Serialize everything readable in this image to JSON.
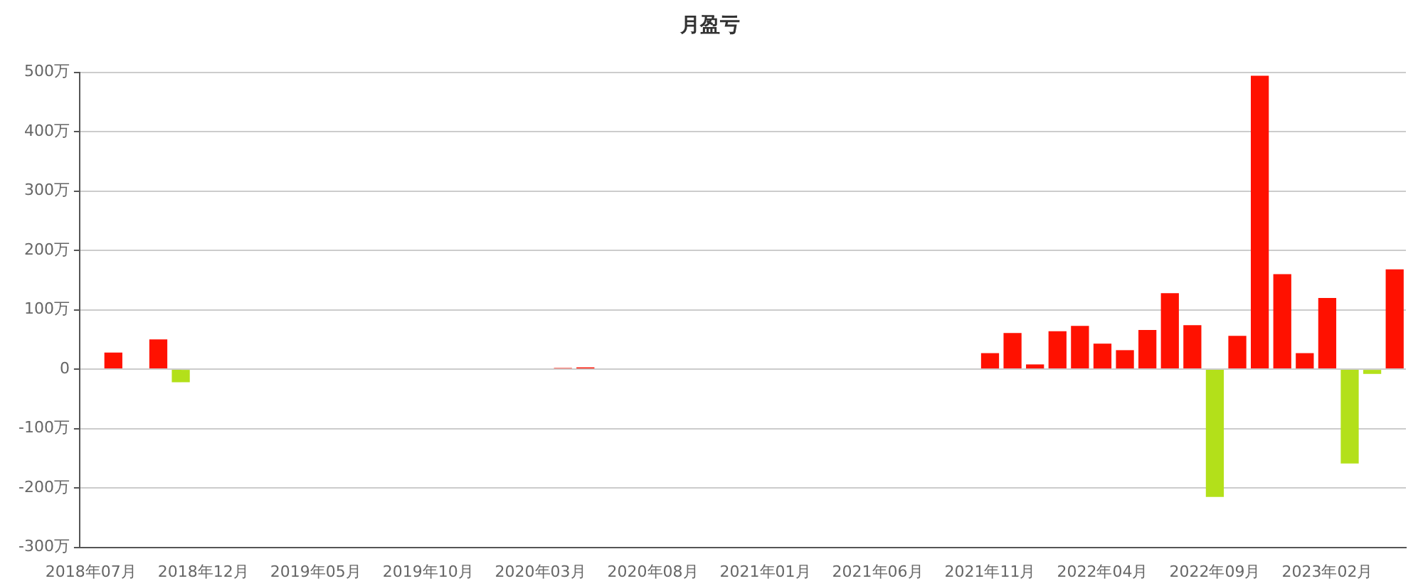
{
  "chart_data": {
    "type": "bar",
    "title": "月盈亏",
    "categories": [
      "2018年07月",
      null,
      null,
      null,
      null,
      "2018年12月",
      null,
      null,
      null,
      null,
      "2019年05月",
      null,
      null,
      null,
      null,
      "2019年10月",
      null,
      null,
      null,
      null,
      "2020年03月",
      null,
      null,
      null,
      null,
      "2020年08月",
      null,
      null,
      null,
      null,
      "2021年01月",
      null,
      null,
      null,
      null,
      "2021年06月",
      null,
      null,
      null,
      null,
      "2021年11月",
      null,
      null,
      null,
      null,
      "2022年04月",
      null,
      null,
      null,
      null,
      "2022年09月",
      null,
      null,
      null,
      null,
      "2023年02月",
      null,
      null,
      null
    ],
    "values": [
      0,
      28,
      null,
      50,
      -22,
      0,
      0,
      0,
      0,
      0,
      0,
      0,
      0,
      0,
      0,
      0,
      0,
      0,
      0,
      0,
      0,
      2,
      3,
      0,
      0,
      0,
      0,
      0,
      0,
      0,
      0,
      0,
      0,
      0,
      0,
      0,
      0,
      0,
      0,
      null,
      27,
      61,
      8,
      64,
      73,
      43,
      32,
      66,
      128,
      74,
      -215,
      56,
      494,
      160,
      27,
      120,
      -159,
      -8,
      168
    ],
    "colors": [
      "#ff1100",
      "#ff1100",
      "#b3e01a",
      "#ff1100",
      "#b3e01a",
      "#ff1100",
      "#ff1100",
      "#ff1100",
      "#ff1100",
      "#ff1100",
      "#ff1100",
      "#ff1100",
      "#ff1100",
      "#ff1100",
      "#ff1100",
      "#ff1100",
      "#ff1100",
      "#ff1100",
      "#ff1100",
      "#ff1100",
      "#ff1100",
      "#ff1100",
      "#ff1100",
      "#ff1100",
      "#ff1100",
      "#ff1100",
      "#ff1100",
      "#ff1100",
      "#ff1100",
      "#ff1100",
      "#ff1100",
      "#ff1100",
      "#ff1100",
      "#ff1100",
      "#ff1100",
      "#ff1100",
      "#ff1100",
      "#ff1100",
      "#ff1100",
      "#ff1100",
      "#ff1100",
      "#ff1100",
      "#ff1100",
      "#ff1100",
      "#ff1100",
      "#ff1100",
      "#ff1100",
      "#ff1100",
      "#ff1100",
      "#ff1100",
      "#b3e01a",
      "#ff1100",
      "#ff1100",
      "#ff1100",
      "#ff1100",
      "#ff1100",
      "#b3e01a",
      "#b3e01a",
      "#ff1100"
    ],
    "ylim": [
      -300,
      500
    ],
    "yticks": [
      {
        "value": -300,
        "label": "-300万"
      },
      {
        "value": -200,
        "label": "-200万"
      },
      {
        "value": -100,
        "label": "-100万"
      },
      0,
      {
        "value": 100,
        "label": "100万"
      },
      {
        "value": 200,
        "label": "200万"
      },
      {
        "value": 300,
        "label": "300万"
      },
      {
        "value": 400,
        "label": "400万"
      },
      {
        "value": 500,
        "label": "500万"
      }
    ],
    "grid": "y",
    "legend": false
  }
}
